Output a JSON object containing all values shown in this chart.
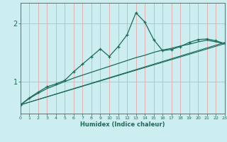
{
  "xlabel": "Humidex (Indice chaleur)",
  "bg_color": "#cceef0",
  "grid_color": "#e8a8a8",
  "line_color": "#1a6b5a",
  "x_ticks": [
    0,
    1,
    2,
    3,
    4,
    5,
    6,
    7,
    8,
    9,
    10,
    11,
    12,
    13,
    14,
    15,
    16,
    17,
    18,
    19,
    20,
    21,
    22,
    23
  ],
  "y_ticks": [
    1,
    2
  ],
  "ylim": [
    0.45,
    2.35
  ],
  "xlim": [
    0,
    23
  ],
  "line1_x": [
    0,
    1,
    2,
    3,
    4,
    5,
    6,
    7,
    8,
    9,
    10,
    11,
    12,
    13,
    14,
    15,
    16,
    17,
    18,
    19,
    20,
    21,
    22,
    23
  ],
  "line1_y": [
    0.6,
    0.72,
    0.82,
    0.91,
    0.96,
    1.02,
    1.17,
    1.3,
    1.43,
    1.56,
    1.43,
    1.6,
    1.8,
    2.18,
    2.02,
    1.72,
    1.53,
    1.55,
    1.6,
    1.67,
    1.72,
    1.73,
    1.7,
    1.65
  ],
  "line2_x": [
    0,
    1,
    2,
    3,
    4,
    5,
    6,
    7,
    8,
    9,
    10,
    11,
    12,
    13,
    14,
    15,
    16,
    17,
    18,
    19,
    20,
    21,
    22,
    23
  ],
  "line2_y": [
    0.6,
    0.71,
    0.8,
    0.88,
    0.94,
    1.0,
    1.06,
    1.11,
    1.16,
    1.21,
    1.26,
    1.31,
    1.36,
    1.41,
    1.45,
    1.5,
    1.54,
    1.57,
    1.61,
    1.64,
    1.68,
    1.71,
    1.68,
    1.65
  ],
  "line3_x": [
    0,
    23
  ],
  "line3_y": [
    0.6,
    1.65
  ],
  "line4_x": [
    0,
    23
  ],
  "line4_y": [
    0.6,
    1.67
  ]
}
